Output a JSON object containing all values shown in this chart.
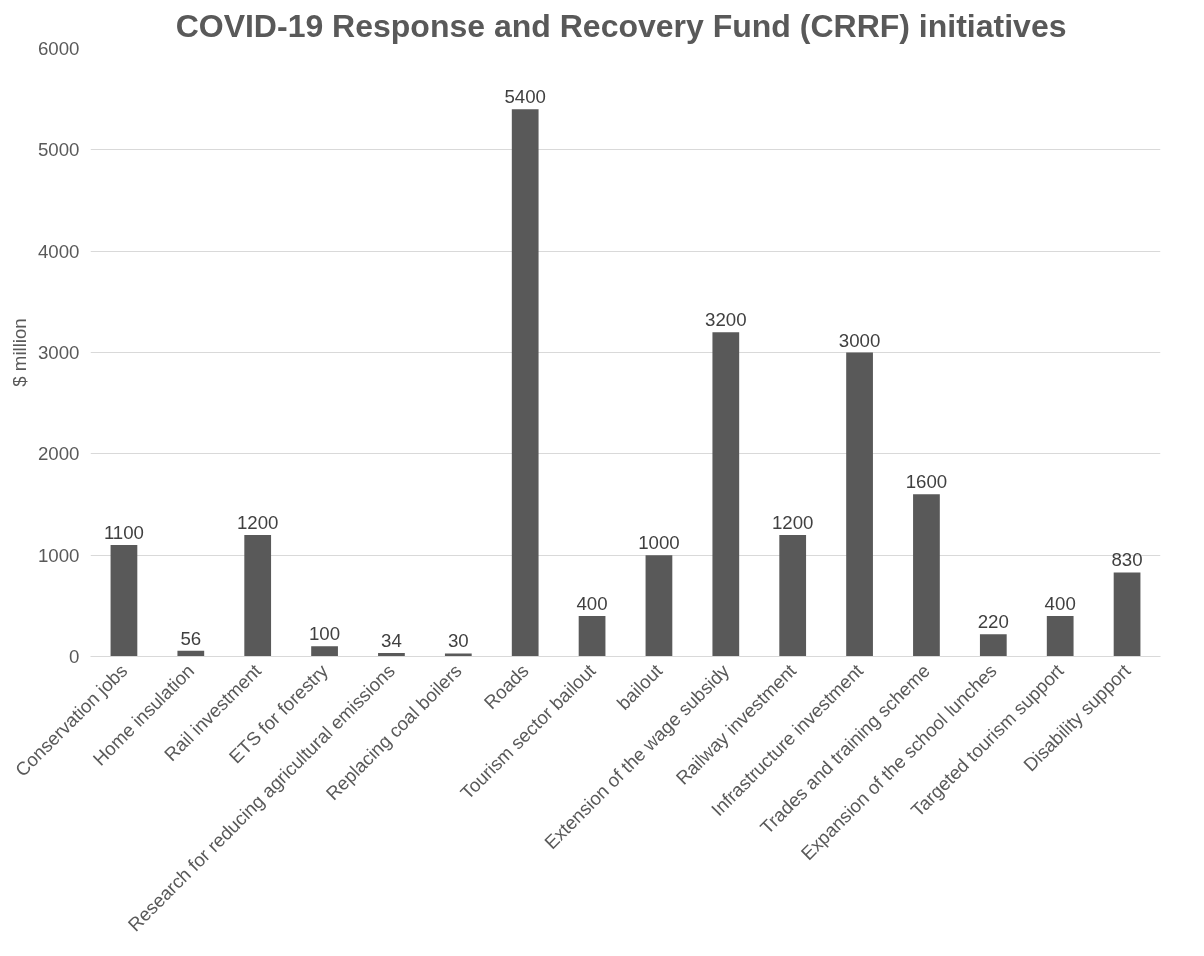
{
  "chart_data": {
    "type": "bar",
    "title": "COVID-19 Response and Recovery Fund (CRRF)  initiatives",
    "ylabel": "$ million",
    "categories": [
      "Conservation jobs",
      "Home insulation",
      "Rail investment",
      "ETS for forestry",
      "Research for reducing agricultural emissions",
      "Replacing coal boilers",
      "Roads",
      "Tourism sector bailout",
      "bailout",
      "Extension of the wage subsidy",
      "Railway investment",
      "Infrastructure investment",
      "Trades and training scheme",
      "Expansion of the school lunches",
      "Targeted tourism support",
      "Disability support"
    ],
    "values": [
      1100,
      56,
      1200,
      100,
      34,
      30,
      5400,
      400,
      1000,
      3200,
      1200,
      3000,
      1600,
      220,
      400,
      830
    ],
    "color": "#595959",
    "ylim": [
      0,
      6000
    ],
    "yticks": [
      0,
      1000,
      2000,
      3000,
      4000,
      5000,
      6000
    ],
    "grid": "y",
    "data_labels": true
  }
}
